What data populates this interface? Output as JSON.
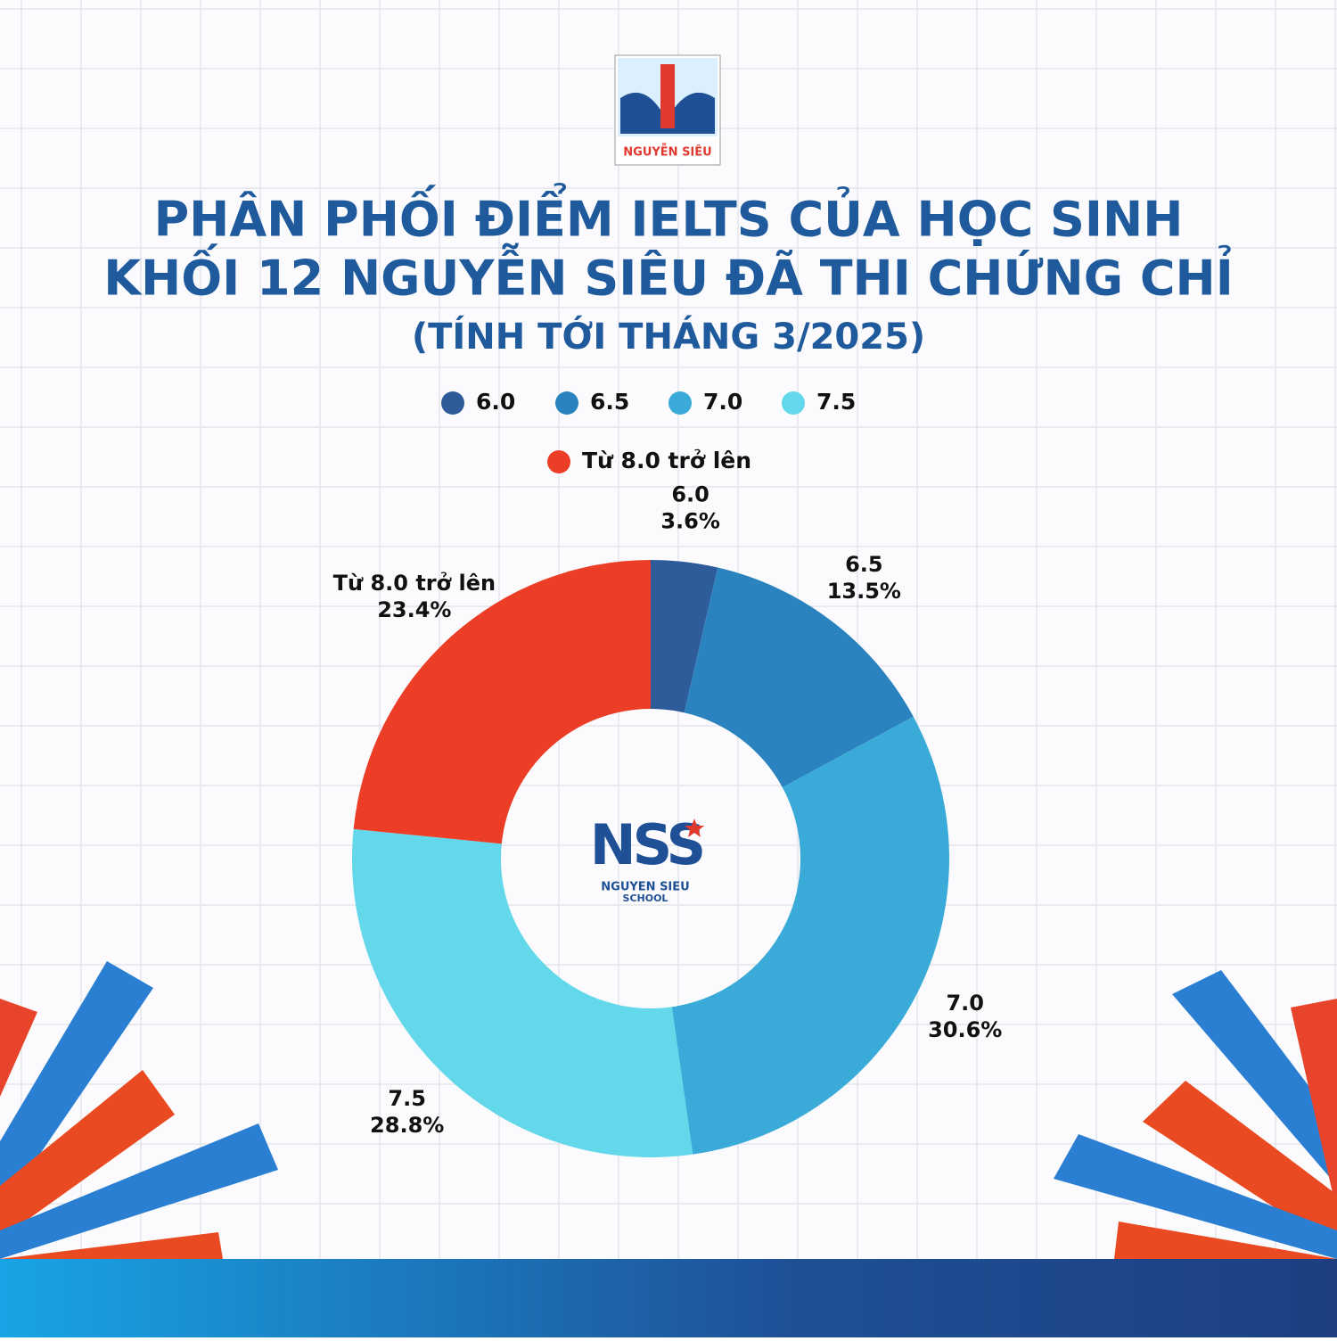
{
  "logos": {
    "top_name": "NGUYỄN SIÊU",
    "center_mark": "NSS",
    "center_name": "NGUYEN SIEU",
    "center_school": "SCHOOL"
  },
  "chart_data": {
    "type": "pie",
    "donut": true,
    "title": [
      "PHÂN PHỐI ĐIỂM IELTS CỦA HỌC SINH",
      "KHỐI 12 NGUYỄN SIÊU ĐÃ THI CHỨNG CHỈ"
    ],
    "subtitle": "(TÍNH TỚI THÁNG 3/2025)",
    "categories": [
      "6.0",
      "6.5",
      "7.0",
      "7.5",
      "Từ 8.0 trở lên"
    ],
    "values": [
      3.6,
      13.5,
      30.6,
      28.8,
      23.4
    ],
    "value_labels": [
      "3.6%",
      "13.5%",
      "30.6%",
      "28.8%",
      "23.4%"
    ],
    "colors": [
      "#2e5c9a",
      "#2a83bf",
      "#3aabd9",
      "#63d8ea",
      "#ec3d27"
    ],
    "legend": "top"
  }
}
